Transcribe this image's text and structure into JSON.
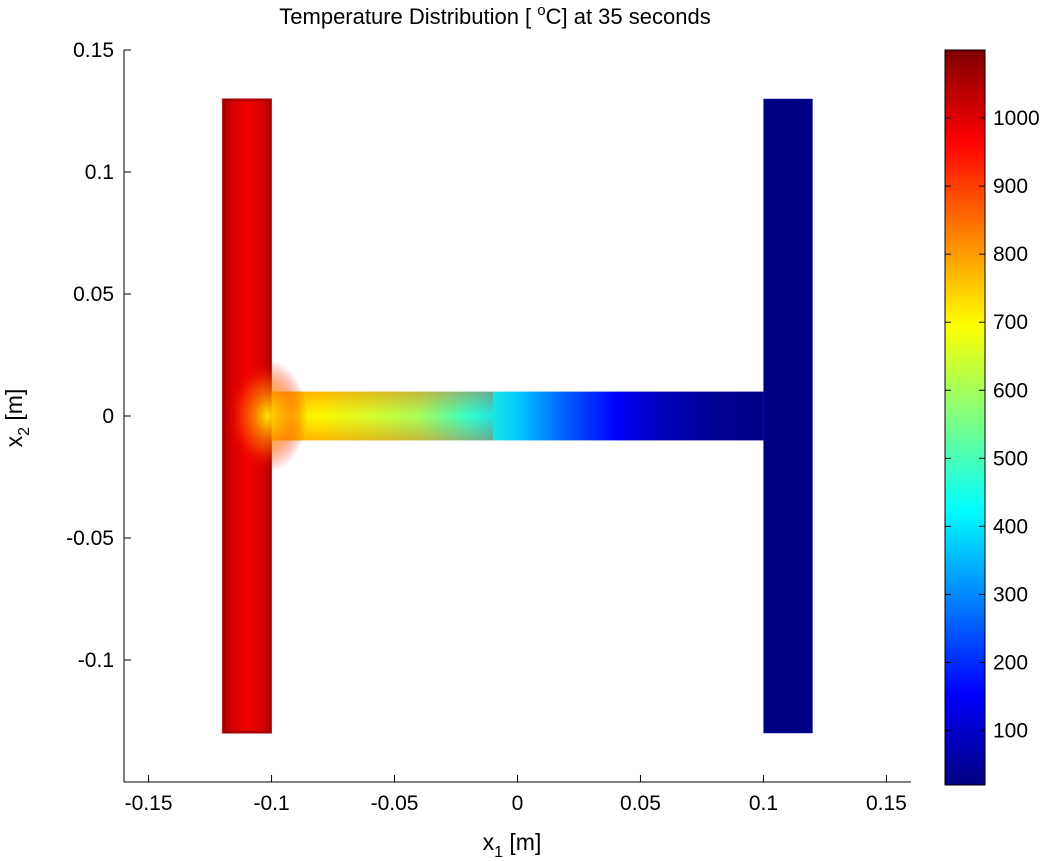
{
  "chart_data": {
    "type": "heatmap",
    "title_prefix": "Temperature Distribution [ ",
    "title_degree": "o",
    "title_suffix": "C] at 35 seconds",
    "xlabel_main": "x",
    "xlabel_sub": "1",
    "xlabel_unit": " [m]",
    "ylabel_main": "x",
    "ylabel_sub": "2",
    "ylabel_unit": " [m]",
    "xlim": [
      -0.16,
      0.16
    ],
    "ylim": [
      -0.15,
      0.15
    ],
    "xticks": [
      {
        "value": -0.15,
        "label": "-0.15"
      },
      {
        "value": -0.1,
        "label": "-0.1"
      },
      {
        "value": -0.05,
        "label": "-0.05"
      },
      {
        "value": 0,
        "label": "0"
      },
      {
        "value": 0.05,
        "label": "0.05"
      },
      {
        "value": 0.1,
        "label": "0.1"
      },
      {
        "value": 0.15,
        "label": "0.15"
      }
    ],
    "yticks": [
      {
        "value": 0.15,
        "label": "0.15"
      },
      {
        "value": 0.1,
        "label": "0.1"
      },
      {
        "value": 0.05,
        "label": "0.05"
      },
      {
        "value": 0,
        "label": "0"
      },
      {
        "value": -0.05,
        "label": "-0.05"
      },
      {
        "value": -0.1,
        "label": "-0.1"
      }
    ],
    "colormap": "jet",
    "clim": [
      20,
      1100
    ],
    "colorbar_ticks": [
      {
        "value": 100,
        "label": "100"
      },
      {
        "value": 200,
        "label": "200"
      },
      {
        "value": 300,
        "label": "300"
      },
      {
        "value": 400,
        "label": "400"
      },
      {
        "value": 500,
        "label": "500"
      },
      {
        "value": 600,
        "label": "600"
      },
      {
        "value": 700,
        "label": "700"
      },
      {
        "value": 800,
        "label": "800"
      },
      {
        "value": 900,
        "label": "900"
      },
      {
        "value": 1000,
        "label": "1000"
      }
    ],
    "regions": [
      {
        "name": "left-flange",
        "x": [
          -0.12,
          -0.1
        ],
        "y": [
          -0.13,
          0.13
        ],
        "temp_edge": 1050,
        "temp_core": 980,
        "temp_joint": 720
      },
      {
        "name": "web",
        "x": [
          -0.1,
          0.1
        ],
        "y": [
          -0.01,
          0.01
        ],
        "temp_profile": [
          [
            -0.1,
            720
          ],
          [
            -0.08,
            700
          ],
          [
            -0.06,
            650
          ],
          [
            -0.04,
            600
          ],
          [
            -0.02,
            480
          ],
          [
            0,
            370
          ],
          [
            0.02,
            250
          ],
          [
            0.04,
            150
          ],
          [
            0.06,
            80
          ],
          [
            0.08,
            40
          ],
          [
            0.1,
            30
          ]
        ]
      },
      {
        "name": "right-flange",
        "x": [
          0.1,
          0.12
        ],
        "y": [
          -0.13,
          0.13
        ],
        "temp": 25
      }
    ]
  }
}
